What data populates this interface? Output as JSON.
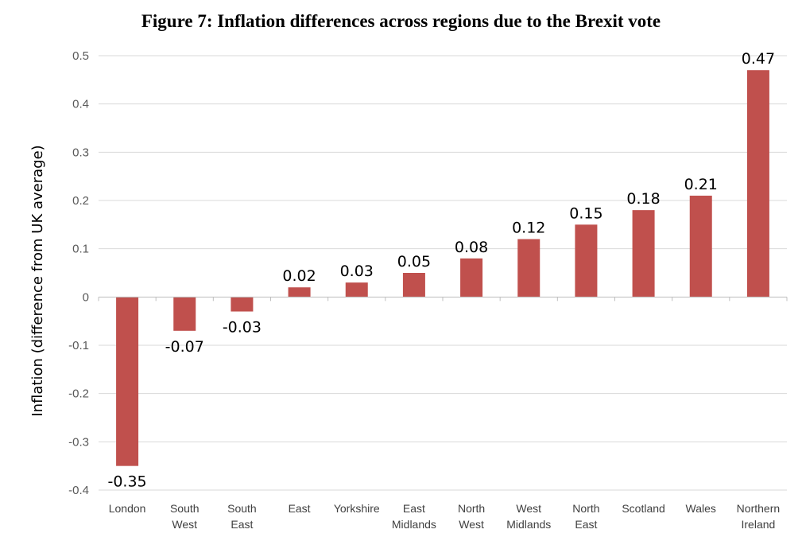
{
  "chart_data": {
    "type": "bar",
    "title": "Figure 7: Inflation differences across regions due to the Brexit vote",
    "xlabel": "",
    "ylabel": "Inflation (difference from UK average)",
    "ylim": [
      -0.4,
      0.5
    ],
    "yticks": [
      "0.5",
      "0.4",
      "0.3",
      "0.2",
      "0.1",
      "0",
      "-0.1",
      "-0.2",
      "-0.3",
      "-0.4"
    ],
    "ytick_values": [
      0.5,
      0.4,
      0.3,
      0.2,
      0.1,
      0,
      -0.1,
      -0.2,
      -0.3,
      -0.4
    ],
    "grid": true,
    "legend": "none",
    "bar_color": "#c0504d",
    "categories": [
      [
        "London"
      ],
      [
        "South",
        "West"
      ],
      [
        "South",
        "East"
      ],
      [
        "East"
      ],
      [
        "Yorkshire"
      ],
      [
        "East",
        "Midlands"
      ],
      [
        "North",
        "West"
      ],
      [
        "West",
        "Midlands"
      ],
      [
        "North",
        "East"
      ],
      [
        "Scotland"
      ],
      [
        "Wales"
      ],
      [
        "Northern",
        "Ireland"
      ]
    ],
    "values": [
      -0.35,
      -0.07,
      -0.03,
      0.02,
      0.03,
      0.05,
      0.08,
      0.12,
      0.15,
      0.18,
      0.21,
      0.47
    ],
    "data_labels": [
      "-0.35",
      "-0.07",
      "-0.03",
      "0.02",
      "0.03",
      "0.05",
      "0.08",
      "0.12",
      "0.15",
      "0.18",
      "0.21",
      "0.47"
    ]
  }
}
